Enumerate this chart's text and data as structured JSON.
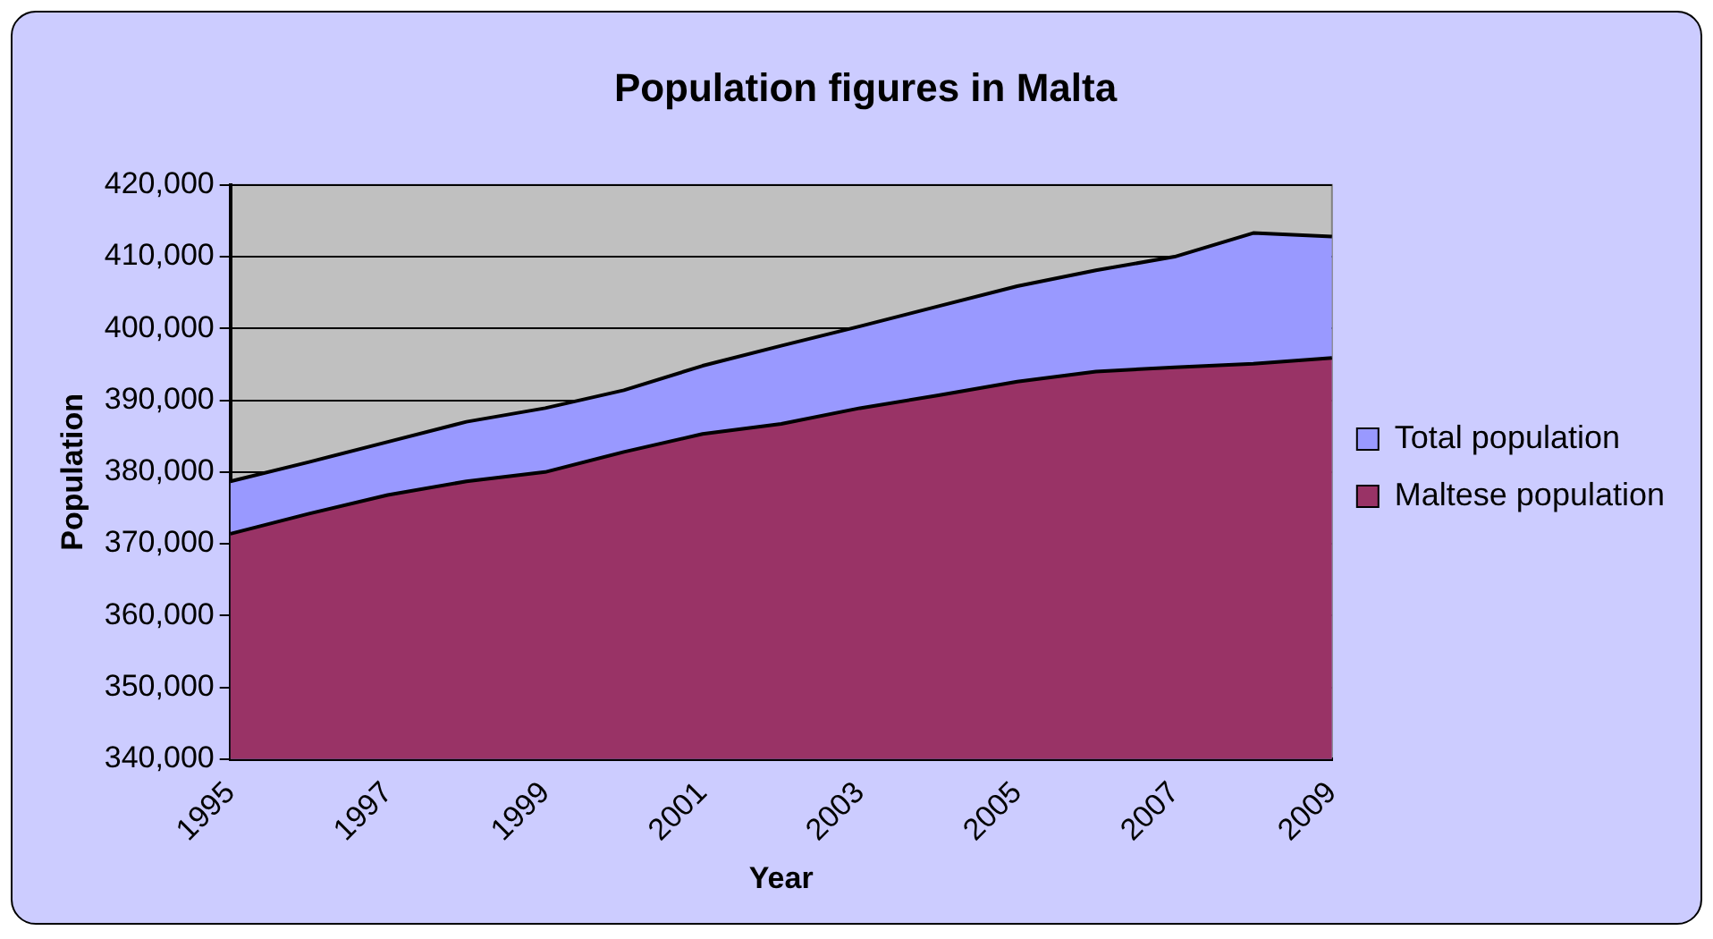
{
  "chart_data": {
    "type": "area",
    "title": "Population figures in Malta",
    "xlabel": "Year",
    "ylabel": "Population",
    "categories": [
      "1995",
      null,
      "1997",
      null,
      "1999",
      null,
      "2001",
      null,
      "2003",
      null,
      "2005",
      null,
      "2007",
      null,
      "2009"
    ],
    "series": [
      {
        "name": "Total population",
        "color": "#9999ff",
        "values": [
          378700,
          381400,
          384200,
          387000,
          388900,
          391400,
          394800,
          397600,
          400300,
          403100,
          405900,
          408100,
          410000,
          413300,
          412800
        ]
      },
      {
        "name": "Maltese population",
        "color": "#993366",
        "values": [
          371400,
          374200,
          376800,
          378700,
          380000,
          382800,
          385300,
          386700,
          388900,
          390700,
          392600,
          394000,
          394600,
          395100,
          395900
        ]
      }
    ],
    "ylim": [
      340000,
      420000
    ],
    "yticks": [
      {
        "value": 340000,
        "label": "340,000"
      },
      {
        "value": 350000,
        "label": "350,000"
      },
      {
        "value": 360000,
        "label": "360,000"
      },
      {
        "value": 370000,
        "label": "370,000"
      },
      {
        "value": 380000,
        "label": "380,000"
      },
      {
        "value": 390000,
        "label": "390,000"
      },
      {
        "value": 400000,
        "label": "400,000"
      },
      {
        "value": 410000,
        "label": "410,000"
      },
      {
        "value": 420000,
        "label": "420,000"
      }
    ],
    "grid": "y",
    "legend": "right",
    "marker": "none"
  }
}
